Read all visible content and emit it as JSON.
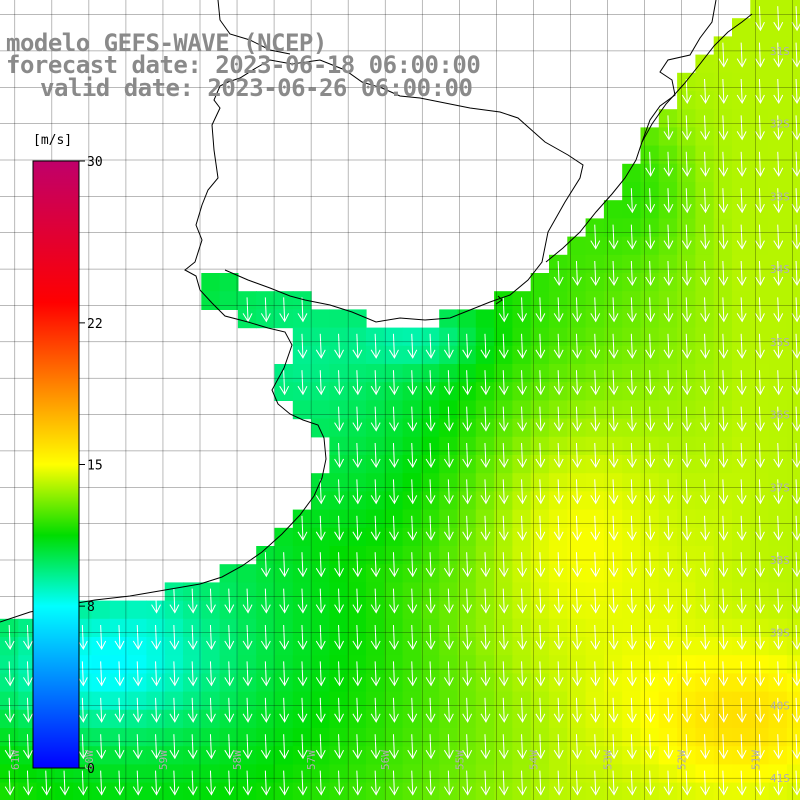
{
  "title": {
    "line1": "modelo GEFS-WAVE (NCEP)",
    "line2": "forecast date: 2023-06-18 06:00:00",
    "line3": "valid date: 2023-06-26 06:00:00"
  },
  "colorbar": {
    "unit": "[m/s]",
    "ticks": [
      {
        "value": 30,
        "label": "30"
      },
      {
        "value": 22,
        "label": "22"
      },
      {
        "value": 15,
        "label": "15"
      },
      {
        "value": 8,
        "label": "8"
      },
      {
        "value": 0,
        "label": "0"
      }
    ],
    "range": [
      0,
      30
    ],
    "colors": [
      "#0000ff",
      "#00ffff",
      "#00dd00",
      "#ffff00",
      "#ff8000",
      "#ff0000",
      "#c0006a"
    ]
  },
  "map": {
    "lon_range": [
      -61.2,
      -50.4
    ],
    "lat_range": [
      -41.3,
      -30.3
    ],
    "lon_labels": [
      {
        "lon": -61,
        "label": "61W"
      },
      {
        "lon": -60,
        "label": "60W"
      },
      {
        "lon": -59,
        "label": "59W"
      },
      {
        "lon": -58,
        "label": "58W"
      },
      {
        "lon": -57,
        "label": "57W"
      },
      {
        "lon": -56,
        "label": "56W"
      },
      {
        "lon": -55,
        "label": "55W"
      },
      {
        "lon": -54,
        "label": "54W"
      },
      {
        "lon": -53,
        "label": "53W"
      },
      {
        "lon": -52,
        "label": "52W"
      },
      {
        "lon": -51,
        "label": "51W"
      }
    ],
    "lat_labels": [
      {
        "lat": -31,
        "label": "31S"
      },
      {
        "lat": -32,
        "label": "32S"
      },
      {
        "lat": -33,
        "label": "33S"
      },
      {
        "lat": -34,
        "label": "34S"
      },
      {
        "lat": -35,
        "label": "35S"
      },
      {
        "lat": -36,
        "label": "36S"
      },
      {
        "lat": -37,
        "label": "37S"
      },
      {
        "lat": -38,
        "label": "38S"
      },
      {
        "lat": -39,
        "label": "39S"
      },
      {
        "lat": -40,
        "label": "40S"
      },
      {
        "lat": -41,
        "label": "41S"
      }
    ],
    "field_name": "wind speed",
    "arrow_color": "#ffffff",
    "land_color": "#ffffff",
    "grid_color": "#000000"
  }
}
